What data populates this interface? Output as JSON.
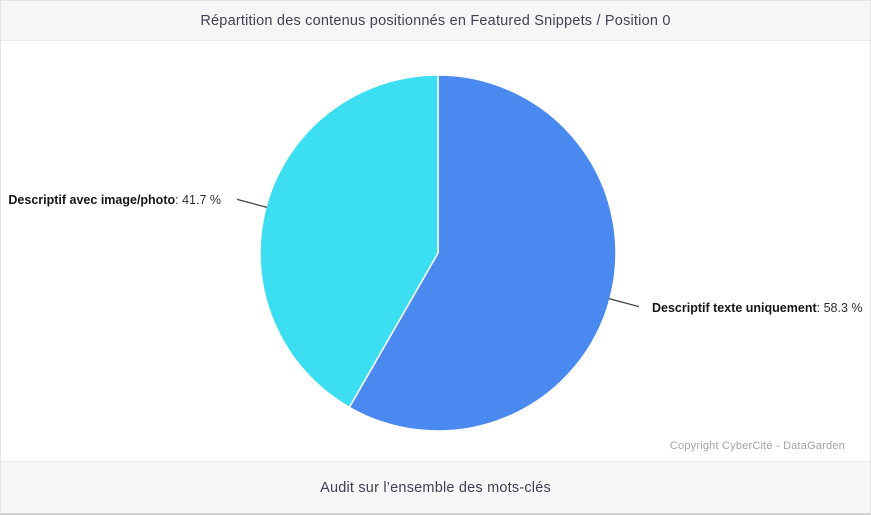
{
  "header": {
    "title": "Répartition des contenus positionnés en Featured Snippets / Position 0"
  },
  "footer": {
    "text": "Audit sur l’ensemble des mots-clés"
  },
  "copyright_text": "Copyright CyberCité - DataGarden",
  "colors": {
    "slice_blue": "#4a89f0",
    "slice_cyan": "#3cdff2",
    "leader_line": "#3d3d3d",
    "slice_separator": "#ffffff"
  },
  "chart_data": {
    "type": "pie",
    "title": "Répartition des contenus positionnés en Featured Snippets / Position 0",
    "start_angle_deg": 0,
    "direction": "clockwise",
    "legend_position": "none",
    "slices": [
      {
        "label": "Descriptif texte uniquement",
        "value": 58.3,
        "unit": "%",
        "color": "#4a89f0"
      },
      {
        "label": "Descriptif avec image/photo",
        "value": 41.7,
        "unit": "%",
        "color": "#3cdff2"
      }
    ],
    "annotations": [
      {
        "side": "left",
        "name": "Descriptif avec image/photo",
        "value_text": ": 41.7 %"
      },
      {
        "side": "right",
        "name": "Descriptif texte uniquement",
        "value_text": ": 58.3 %"
      }
    ]
  }
}
